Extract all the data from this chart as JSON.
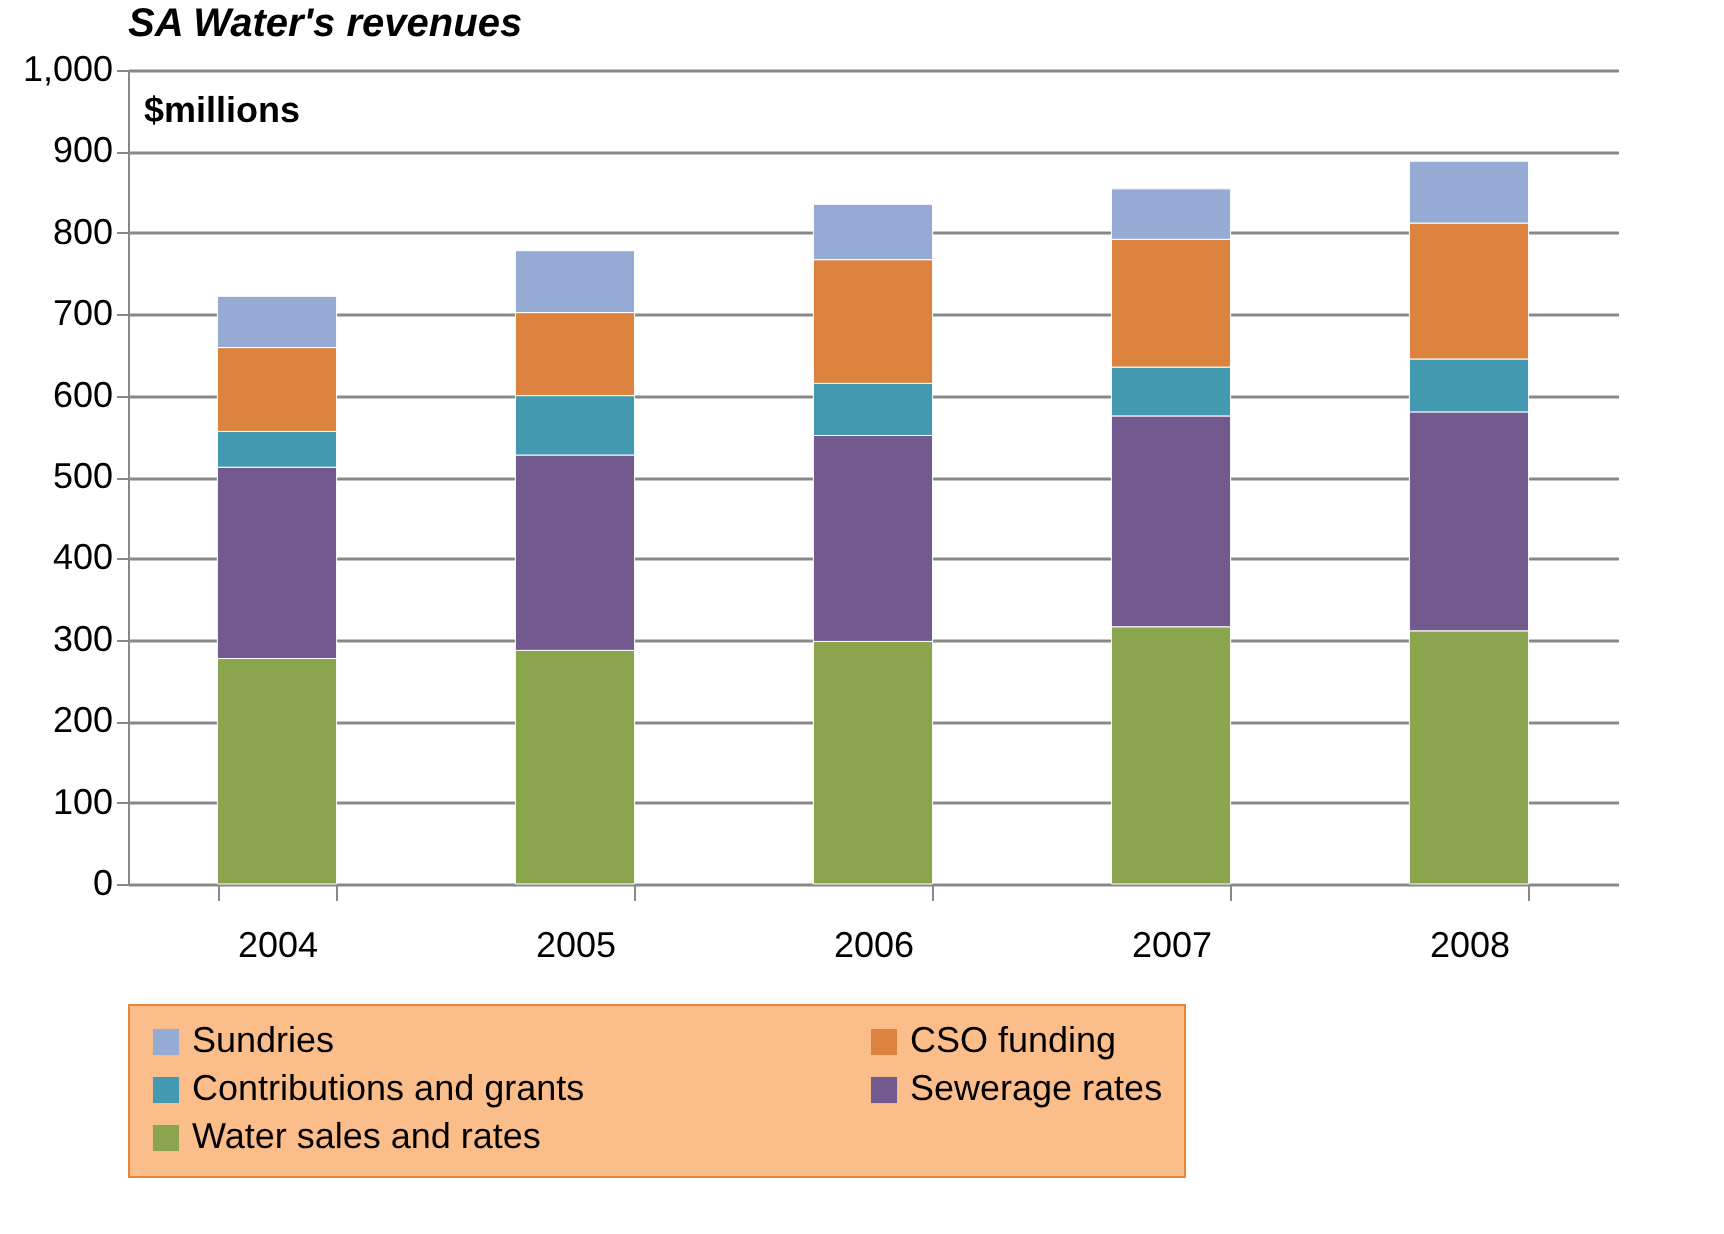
{
  "chart_data": {
    "type": "bar",
    "title": "SA Water's revenues",
    "stacked": true,
    "categories": [
      "2004",
      "2005",
      "2006",
      "2007",
      "2008"
    ],
    "series": [
      {
        "name": "Water sales and rates",
        "color": "#8ba54e",
        "values": [
          277,
          287,
          298,
          316,
          311
        ]
      },
      {
        "name": "Sewerage rates",
        "color": "#72598e",
        "values": [
          235,
          240,
          253,
          259,
          269
        ]
      },
      {
        "name": "Contributions and grants",
        "color": "#4299b0",
        "values": [
          44,
          73,
          64,
          60,
          65
        ]
      },
      {
        "name": "CSO funding",
        "color": "#dc843f",
        "values": [
          103,
          102,
          152,
          157,
          167
        ]
      },
      {
        "name": "Sundries",
        "color": "#95abd3",
        "values": [
          63,
          76,
          68,
          62,
          76
        ]
      }
    ],
    "ylim": [
      0,
      1000
    ],
    "yticks": [
      0,
      100,
      200,
      300,
      400,
      500,
      600,
      700,
      800,
      900,
      {
        "value": 1000,
        "label": "1,000"
      }
    ],
    "grid": "y",
    "legend": "bottom",
    "annotations": [
      "$millions"
    ]
  }
}
